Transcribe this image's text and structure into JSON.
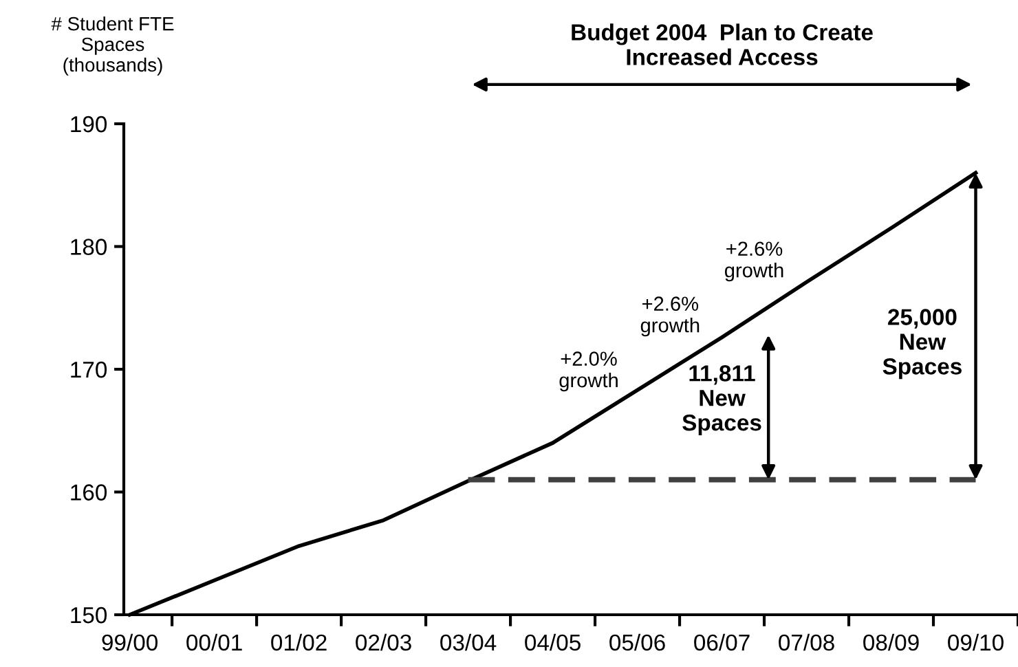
{
  "chart_data": {
    "type": "line",
    "title": "Budget 2004  Plan to Create\nIncreased Access",
    "ylabel": "# Student FTE\nSpaces\n(thousands)",
    "categories": [
      "99/00",
      "00/01",
      "01/02",
      "02/03",
      "03/04",
      "04/05",
      "05/06",
      "06/07",
      "07/08",
      "08/09",
      "09/10"
    ],
    "series": [
      {
        "color": "#000000",
        "line_style": "solid",
        "values": [
          150,
          152.8,
          155.6,
          157.7,
          160.9,
          164.0,
          168.3,
          172.6,
          177.1,
          181.5,
          186
        ]
      },
      {
        "color": "#404040",
        "line_style": "dashed",
        "values": [
          null,
          null,
          null,
          null,
          161,
          161,
          161,
          161,
          161,
          161,
          161
        ]
      }
    ],
    "ylim": [
      150,
      190
    ],
    "yticks": [
      150,
      160,
      170,
      180,
      190
    ],
    "grid": false,
    "legend": false,
    "marker": "none",
    "annotations": [
      "+2.0%\ngrowth",
      "+2.6%\ngrowth",
      "+2.6%\ngrowth",
      {
        "text": "11,811\nNew\nSpaces",
        "x": "06/07",
        "y": 172.8
      },
      "25,000\nNew\nSpaces"
    ]
  }
}
